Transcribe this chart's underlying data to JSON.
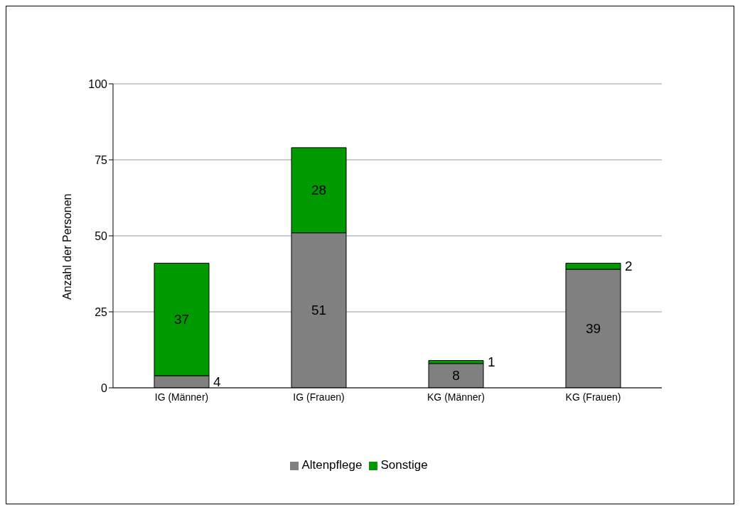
{
  "chart_data": {
    "type": "bar",
    "ylabel": "Anzahl der Personen",
    "categories": [
      "IG (Männer)",
      "IG (Frauen)",
      "KG (Männer)",
      "KG (Frauen)"
    ],
    "series": [
      {
        "name": "Altenpflege",
        "color": "#808080",
        "values": [
          4,
          51,
          8,
          39
        ]
      },
      {
        "name": "Sonstige",
        "color": "#009900",
        "values": [
          37,
          28,
          1,
          2
        ]
      }
    ],
    "stacked": true,
    "ylim": [
      0,
      100
    ],
    "yticks": [
      0,
      25,
      50,
      75,
      100
    ],
    "grid": "y",
    "legend": "bottom",
    "data_labels": true
  }
}
